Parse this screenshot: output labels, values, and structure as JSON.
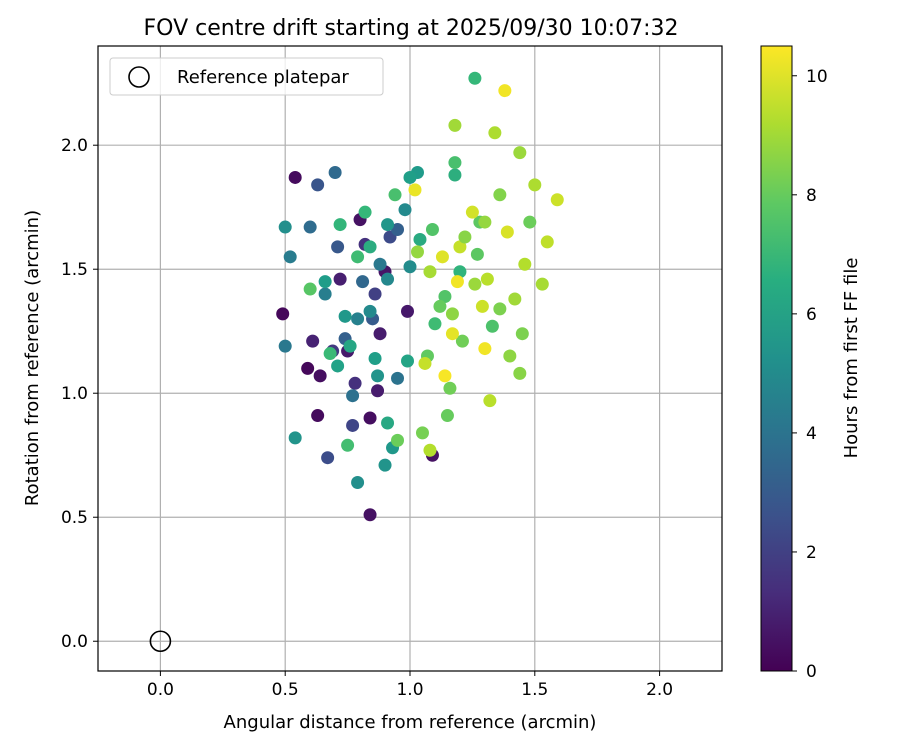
{
  "chart_data": {
    "type": "scatter",
    "title": "FOV centre drift starting at 2025/09/30 10:07:32",
    "xlabel": "Angular distance from reference (arcmin)",
    "ylabel": "Rotation from reference (arcmin)",
    "xlim": [
      -0.25,
      2.25
    ],
    "ylim": [
      -0.12,
      2.4
    ],
    "xticks": [
      0.0,
      0.5,
      1.0,
      1.5,
      2.0
    ],
    "xtick_labels": [
      "0.0",
      "0.5",
      "1.0",
      "1.5",
      "2.0"
    ],
    "yticks": [
      0.0,
      0.5,
      1.0,
      1.5,
      2.0
    ],
    "ytick_labels": [
      "0.0",
      "0.5",
      "1.0",
      "1.5",
      "2.0"
    ],
    "grid": true,
    "legend": {
      "position": "top-left",
      "entries": [
        "Reference platepar"
      ]
    },
    "reference_point": {
      "x": 0.0,
      "y": 0.0,
      "label": "Reference platepar"
    },
    "colorbar": {
      "label": "Hours from first FF file",
      "range": [
        0,
        10.5
      ],
      "ticks": [
        0,
        2,
        4,
        6,
        8,
        10
      ],
      "tick_labels": [
        "0",
        "2",
        "4",
        "6",
        "8",
        "10"
      ],
      "colormap": "viridis"
    },
    "points": [
      [
        0.49,
        1.32,
        0.2
      ],
      [
        0.54,
        1.87,
        0.3
      ],
      [
        0.59,
        1.1,
        0.2
      ],
      [
        0.63,
        0.91,
        0.3
      ],
      [
        0.64,
        1.07,
        0.4
      ],
      [
        0.8,
        1.7,
        0.5
      ],
      [
        0.84,
        0.9,
        0.4
      ],
      [
        0.84,
        0.51,
        0.5
      ],
      [
        0.87,
        1.01,
        0.8
      ],
      [
        1.09,
        0.75,
        0.5
      ],
      [
        0.75,
        1.17,
        0.7
      ],
      [
        0.61,
        1.21,
        1.0
      ],
      [
        0.72,
        1.46,
        0.9
      ],
      [
        0.9,
        1.49,
        0.6
      ],
      [
        0.88,
        1.24,
        0.8
      ],
      [
        0.99,
        1.33,
        0.7
      ],
      [
        0.78,
        1.04,
        1.5
      ],
      [
        0.69,
        1.17,
        1.8
      ],
      [
        0.82,
        1.6,
        1.5
      ],
      [
        0.86,
        1.4,
        2.0
      ],
      [
        0.77,
        0.87,
        2.2
      ],
      [
        0.67,
        0.74,
        2.5
      ],
      [
        0.92,
        1.63,
        2.4
      ],
      [
        0.63,
        1.84,
        2.8
      ],
      [
        0.71,
        1.59,
        2.9
      ],
      [
        0.85,
        1.3,
        3.0
      ],
      [
        0.95,
        1.66,
        3.2
      ],
      [
        0.74,
        1.22,
        3.2
      ],
      [
        0.81,
        1.45,
        3.5
      ],
      [
        0.7,
        1.89,
        3.6
      ],
      [
        0.6,
        1.67,
        3.7
      ],
      [
        0.77,
        0.99,
        3.9
      ],
      [
        0.95,
        1.06,
        4.0
      ],
      [
        0.88,
        1.52,
        4.2
      ],
      [
        0.5,
        1.19,
        4.2
      ],
      [
        0.52,
        1.55,
        4.4
      ],
      [
        0.66,
        1.4,
        4.5
      ],
      [
        0.79,
        1.3,
        4.6
      ],
      [
        0.91,
        1.46,
        4.9
      ],
      [
        0.84,
        1.33,
        5.0
      ],
      [
        0.98,
        1.74,
        5.0
      ],
      [
        1.0,
        1.51,
        5.1
      ],
      [
        0.5,
        1.67,
        5.2
      ],
      [
        0.54,
        0.82,
        5.4
      ],
      [
        0.79,
        0.64,
        5.2
      ],
      [
        0.9,
        0.71,
        5.4
      ],
      [
        0.93,
        0.78,
        5.6
      ],
      [
        0.87,
        1.07,
        5.4
      ],
      [
        0.74,
        1.31,
        5.6
      ],
      [
        0.91,
        1.68,
        5.5
      ],
      [
        1.03,
        1.89,
        5.7
      ],
      [
        1.0,
        1.87,
        5.9
      ],
      [
        0.66,
        1.45,
        5.8
      ],
      [
        0.86,
        1.14,
        5.9
      ],
      [
        0.71,
        1.11,
        6.0
      ],
      [
        0.76,
        1.19,
        6.2
      ],
      [
        0.99,
        1.13,
        6.1
      ],
      [
        0.91,
        0.88,
        6.3
      ],
      [
        0.84,
        1.59,
        6.5
      ],
      [
        1.04,
        1.62,
        6.4
      ],
      [
        1.18,
        1.88,
        6.6
      ],
      [
        1.2,
        1.49,
        6.8
      ],
      [
        1.26,
        2.27,
        7.0
      ],
      [
        0.72,
        1.68,
        6.9
      ],
      [
        0.82,
        1.73,
        7.0
      ],
      [
        0.79,
        1.55,
        7.2
      ],
      [
        0.68,
        1.16,
        7.1
      ],
      [
        0.75,
        0.79,
        7.3
      ],
      [
        1.1,
        1.28,
        7.2
      ],
      [
        1.18,
        1.93,
        7.4
      ],
      [
        0.94,
        1.8,
        7.4
      ],
      [
        1.14,
        1.39,
        7.6
      ],
      [
        0.6,
        1.42,
        7.7
      ],
      [
        1.07,
        1.15,
        7.9
      ],
      [
        1.28,
        1.69,
        7.8
      ],
      [
        1.15,
        0.91,
        8.0
      ],
      [
        1.21,
        1.21,
        8.2
      ],
      [
        0.95,
        0.81,
        8.1
      ],
      [
        1.05,
        0.84,
        8.3
      ],
      [
        1.36,
        1.34,
        8.4
      ],
      [
        1.45,
        1.24,
        8.4
      ],
      [
        1.44,
        1.08,
        8.6
      ],
      [
        1.17,
        1.32,
        8.7
      ],
      [
        1.3,
        1.69,
        8.8
      ],
      [
        1.26,
        1.44,
        8.9
      ],
      [
        1.18,
        2.08,
        9.0
      ],
      [
        1.34,
        2.05,
        9.2
      ],
      [
        1.53,
        1.44,
        9.1
      ],
      [
        1.46,
        1.52,
        9.3
      ],
      [
        1.5,
        1.84,
        9.2
      ],
      [
        1.32,
        0.97,
        9.4
      ],
      [
        1.08,
        0.77,
        9.3
      ],
      [
        1.2,
        1.59,
        9.6
      ],
      [
        1.55,
        1.61,
        9.5
      ],
      [
        1.59,
        1.78,
        9.7
      ],
      [
        1.29,
        1.35,
        9.7
      ],
      [
        1.39,
        1.65,
        9.9
      ],
      [
        1.13,
        1.55,
        10.0
      ],
      [
        1.17,
        1.24,
        10.1
      ],
      [
        1.02,
        1.82,
        10.2
      ],
      [
        1.19,
        1.45,
        10.3
      ],
      [
        1.3,
        1.18,
        10.3
      ],
      [
        1.38,
        2.22,
        10.3
      ],
      [
        1.14,
        1.07,
        10.4
      ],
      [
        1.06,
        1.12,
        9.6
      ],
      [
        1.25,
        1.73,
        9.8
      ],
      [
        1.44,
        1.97,
        8.9
      ],
      [
        1.36,
        1.8,
        8.5
      ],
      [
        1.03,
        1.57,
        8.8
      ],
      [
        1.08,
        1.49,
        9.1
      ],
      [
        1.22,
        1.63,
        8.6
      ],
      [
        1.12,
        1.35,
        8.0
      ],
      [
        1.27,
        1.56,
        7.8
      ],
      [
        1.33,
        1.27,
        7.5
      ],
      [
        1.16,
        1.02,
        8.2
      ],
      [
        1.4,
        1.15,
        8.7
      ],
      [
        1.48,
        1.69,
        8.1
      ],
      [
        1.09,
        1.66,
        7.6
      ],
      [
        1.31,
        1.46,
        9.4
      ],
      [
        1.42,
        1.38,
        9.0
      ]
    ]
  }
}
